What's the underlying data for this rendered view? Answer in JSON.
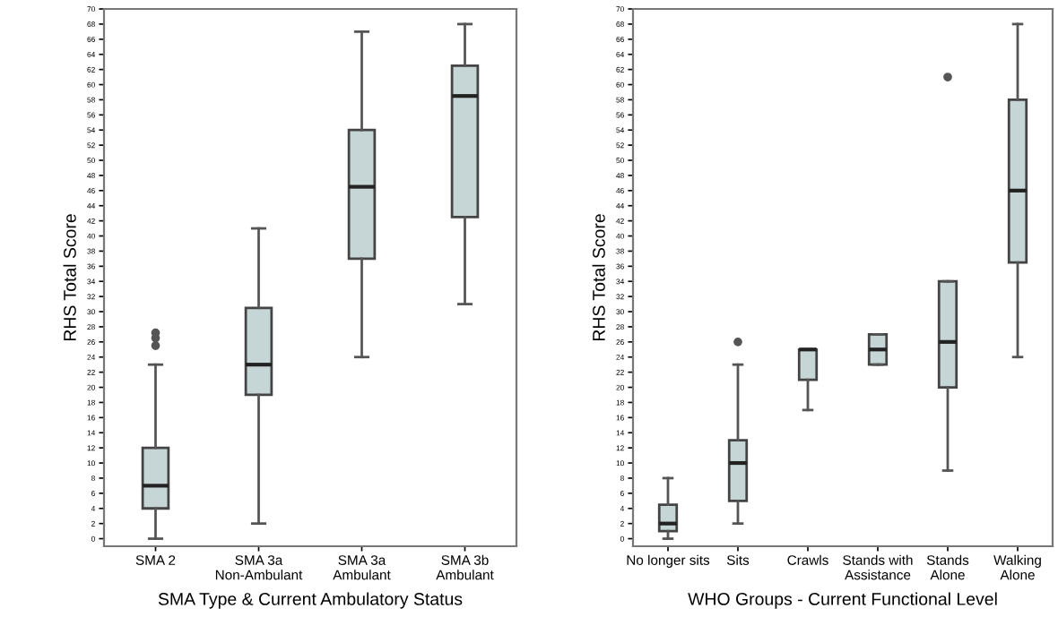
{
  "chart_data": [
    {
      "type": "box",
      "xlabel": "SMA Type & Current Ambulatory Status",
      "ylabel": "RHS Total Score",
      "categories": [
        "SMA 2",
        "SMA 3a\nNon-Ambulant",
        "SMA 3a\nAmbulant",
        "SMA 3b\nAmbulant"
      ],
      "boxes": [
        {
          "low": 0,
          "q1": 4,
          "median": 7,
          "q3": 12,
          "high": 23,
          "outliers": [
            25.5,
            26.5,
            27.2
          ]
        },
        {
          "low": 2,
          "q1": 19,
          "median": 23,
          "q3": 30.5,
          "high": 41
        },
        {
          "low": 24,
          "q1": 37,
          "median": 46.5,
          "q3": 54,
          "high": 67
        },
        {
          "low": 31,
          "q1": 42.5,
          "median": 58.5,
          "q3": 62.5,
          "high": 68
        }
      ],
      "color": "#c6d6d6",
      "ylim": [
        -1,
        70
      ],
      "yticks": [
        0,
        2,
        4,
        6,
        8,
        10,
        12,
        14,
        16,
        18,
        20,
        22,
        24,
        26,
        28,
        30,
        32,
        34,
        36,
        38,
        40,
        42,
        44,
        46,
        48,
        50,
        52,
        54,
        56,
        58,
        60,
        62,
        64,
        66,
        68,
        70
      ],
      "grid": false
    },
    {
      "type": "box",
      "xlabel": "WHO Groups - Current Functional Level",
      "ylabel": "RHS Total Score",
      "categories": [
        "No longer sits",
        "Sits",
        "Crawls",
        "Stands with\nAssistance",
        "Stands\nAlone",
        "Walking\nAlone"
      ],
      "boxes": [
        {
          "low": 0,
          "q1": 1,
          "median": 2,
          "q3": 4.5,
          "high": 8
        },
        {
          "low": 2,
          "q1": 5,
          "median": 10,
          "q3": 13,
          "high": 23,
          "outliers": [
            26
          ]
        },
        {
          "low": 17,
          "q1": 21,
          "median": 25,
          "q3": 25,
          "high": 25
        },
        {
          "low": 23,
          "q1": 23,
          "median": 25,
          "q3": 27,
          "high": 27
        },
        {
          "low": 9,
          "q1": 20,
          "median": 26,
          "q3": 34,
          "high": 34,
          "outliers": [
            61
          ]
        },
        {
          "low": 24,
          "q1": 36.5,
          "median": 46,
          "q3": 58,
          "high": 68
        }
      ],
      "color": "#c6d6d6",
      "ylim": [
        -1,
        70
      ],
      "yticks": [
        0,
        2,
        4,
        6,
        8,
        10,
        12,
        14,
        16,
        18,
        20,
        22,
        24,
        26,
        28,
        30,
        32,
        34,
        36,
        38,
        40,
        42,
        44,
        46,
        48,
        50,
        52,
        54,
        56,
        58,
        60,
        62,
        64,
        66,
        68,
        70
      ],
      "grid": false
    }
  ]
}
